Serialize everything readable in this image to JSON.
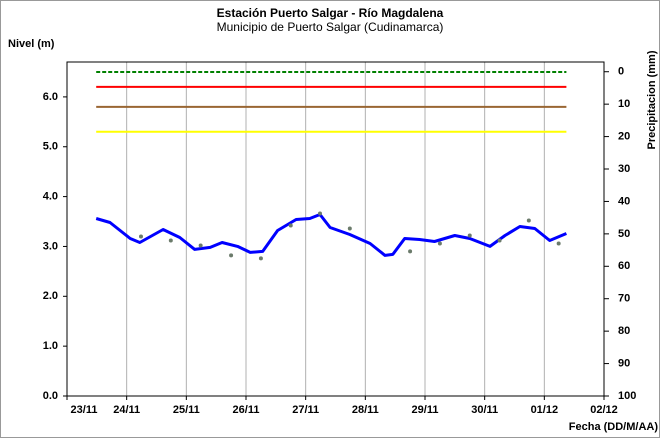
{
  "chart_data": {
    "type": "line",
    "title": "Estación Puerto Salgar - Río Magdalena",
    "subtitle": "Municipio de Puerto Salgar (Cudinamarca)",
    "y_label": "Nivel (m)",
    "y2_label": "Precipitacion (mm)",
    "x_label": "Fecha (DD/M/AA)",
    "xlim": [
      0,
      9
    ],
    "xticks": [
      {
        "value": 0,
        "label": "23/11"
      },
      {
        "value": 1,
        "label": "24/11"
      },
      {
        "value": 2,
        "label": "25/11"
      },
      {
        "value": 3,
        "label": "26/11"
      },
      {
        "value": 4,
        "label": "27/11"
      },
      {
        "value": 5,
        "label": "28/11"
      },
      {
        "value": 6,
        "label": "29/11"
      },
      {
        "value": 7,
        "label": "30/11"
      },
      {
        "value": 8,
        "label": "01/12"
      },
      {
        "value": 9,
        "label": "02/12"
      }
    ],
    "ylim": [
      0,
      6.7
    ],
    "yticks": [
      {
        "value": 0,
        "label": "0.0"
      },
      {
        "value": 1,
        "label": "1.0"
      },
      {
        "value": 2,
        "label": "2.0"
      },
      {
        "value": 3,
        "label": "3.0"
      },
      {
        "value": 4,
        "label": "4.0"
      },
      {
        "value": 5,
        "label": "5.0"
      },
      {
        "value": 6,
        "label": "6.0"
      }
    ],
    "y2lim": [
      100,
      -3
    ],
    "y2ticks": [
      0,
      10,
      20,
      30,
      40,
      50,
      60,
      70,
      80,
      90,
      100
    ],
    "xgrid": true,
    "series": [
      {
        "color": "#008000",
        "mode": "line",
        "dash": true,
        "x": [
          0.49,
          8.37
        ],
        "values": [
          6.5,
          6.5
        ]
      },
      {
        "color": "#ff0000",
        "mode": "line",
        "x": [
          0.49,
          8.37
        ],
        "values": [
          6.2,
          6.2
        ]
      },
      {
        "color": "#996633",
        "mode": "line",
        "x": [
          0.49,
          8.37
        ],
        "values": [
          5.8,
          5.8
        ]
      },
      {
        "color": "#ffff00",
        "mode": "line",
        "x": [
          0.49,
          8.37
        ],
        "values": [
          5.3,
          5.3
        ]
      },
      {
        "color": "#0000ff",
        "mode": "line",
        "width": 3,
        "x": [
          0.49,
          0.72,
          1.06,
          1.22,
          1.61,
          1.89,
          2.14,
          2.4,
          2.6,
          2.86,
          3.07,
          3.28,
          3.53,
          3.84,
          4.07,
          4.24,
          4.41,
          4.74,
          5.08,
          5.33,
          5.46,
          5.66,
          5.91,
          6.16,
          6.5,
          6.75,
          7.09,
          7.34,
          7.59,
          7.84,
          8.09,
          8.37
        ],
        "values": [
          3.56,
          3.48,
          3.16,
          3.08,
          3.34,
          3.18,
          2.94,
          2.98,
          3.08,
          3.0,
          2.88,
          2.9,
          3.32,
          3.54,
          3.56,
          3.64,
          3.38,
          3.24,
          3.06,
          2.82,
          2.84,
          3.16,
          3.14,
          3.1,
          3.22,
          3.16,
          3.0,
          3.22,
          3.4,
          3.36,
          3.12,
          3.26
        ]
      },
      {
        "color": "#6b7b6b",
        "mode": "markers",
        "x": [
          1.24,
          1.74,
          2.24,
          2.75,
          3.25,
          3.75,
          4.24,
          4.74,
          5.75,
          6.25,
          6.75,
          7.25,
          7.74,
          8.24
        ],
        "values": [
          3.2,
          3.12,
          3.02,
          2.82,
          2.76,
          3.42,
          3.66,
          3.36,
          2.9,
          3.06,
          3.22,
          3.12,
          3.52,
          3.06
        ]
      }
    ]
  }
}
